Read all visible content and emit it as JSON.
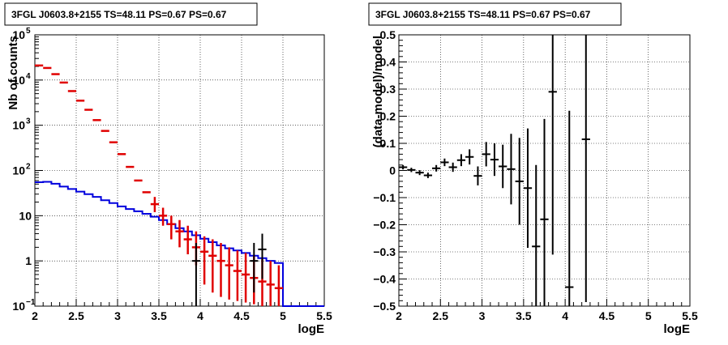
{
  "chart_data": [
    {
      "type": "scatter",
      "title": "3FGL J0603.8+2155 TS=48.11 PS=0.67 PS=0.67",
      "xlabel": "logE",
      "ylabel": "Nb of counts",
      "xlim": [
        2,
        5.5
      ],
      "ylim": [
        0.1,
        100000
      ],
      "yscale": "log",
      "grid": true,
      "x_ticks": [
        "2",
        "2.5",
        "3",
        "3.5",
        "4",
        "4.5",
        "5",
        "5.5"
      ],
      "y_ticks": [
        {
          "value": 0.1,
          "base": "10",
          "exp": "−1"
        },
        {
          "value": 1,
          "base": "1",
          "exp": ""
        },
        {
          "value": 10,
          "base": "10",
          "exp": ""
        },
        {
          "value": 100,
          "base": "10",
          "exp": "2"
        },
        {
          "value": 1000,
          "base": "10",
          "exp": "3"
        },
        {
          "value": 10000,
          "base": "10",
          "exp": "4"
        },
        {
          "value": 100000,
          "base": "10",
          "exp": "5"
        }
      ],
      "bin_edges": [
        2.0,
        2.1,
        2.2,
        2.3,
        2.4,
        2.5,
        2.6,
        2.7,
        2.8,
        2.9,
        3.0,
        3.1,
        3.2,
        3.3,
        3.4,
        3.5,
        3.6,
        3.7,
        3.8,
        3.9,
        4.0,
        4.1,
        4.2,
        4.3,
        4.4,
        4.5,
        4.6,
        4.7,
        4.8,
        4.9,
        5.0,
        5.1,
        5.2,
        5.3,
        5.4,
        5.5
      ],
      "series": [
        {
          "color": "#e00000",
          "kind": "model_markers",
          "x": [
            2.05,
            2.15,
            2.25,
            2.35,
            2.45,
            2.55,
            2.65,
            2.75,
            2.85,
            2.95,
            3.05,
            3.15,
            3.25,
            3.35,
            3.45,
            3.55,
            3.65,
            3.75,
            3.85,
            3.95,
            4.05,
            4.15,
            4.25,
            4.35,
            4.45,
            4.55,
            4.65,
            4.75,
            4.85,
            4.95
          ],
          "y": [
            21000,
            18500,
            13500,
            8800,
            5700,
            3500,
            2200,
            1300,
            750,
            420,
            230,
            120,
            60,
            33,
            18,
            10,
            6.5,
            4.5,
            3,
            2,
            1.6,
            1.3,
            1.0,
            0.8,
            0.6,
            0.5,
            0.42,
            0.35,
            0.3,
            0.25
          ],
          "ylow": [
            null,
            null,
            null,
            null,
            null,
            null,
            null,
            null,
            null,
            null,
            null,
            null,
            null,
            null,
            12,
            6,
            3,
            2,
            1.4,
            0.8,
            0.3,
            0.2,
            0.16,
            0.14,
            0.13,
            0.12,
            0.11,
            0.1,
            0.1,
            0.1
          ],
          "yhigh": [
            null,
            null,
            null,
            null,
            null,
            null,
            null,
            null,
            null,
            null,
            null,
            null,
            null,
            null,
            26,
            15,
            10,
            8,
            6,
            4.5,
            3.5,
            3,
            2.5,
            2,
            1.7,
            1.5,
            1.3,
            1.1,
            1.0,
            0.8
          ]
        },
        {
          "color": "#0000dd",
          "kind": "model_histogram",
          "y": [
            55,
            56,
            51,
            44,
            39,
            34,
            30,
            26,
            22,
            19,
            16,
            14,
            12.5,
            11,
            9.5,
            8,
            6.5,
            5.3,
            4.5,
            3.7,
            3.1,
            2.6,
            2.2,
            1.9,
            1.7,
            1.5,
            1.3,
            1.15,
            1.0,
            0.9,
            0.1,
            0.1,
            0.1,
            0.1,
            0.1
          ]
        },
        {
          "color": "#000000",
          "kind": "data_points",
          "x": [
            3.95,
            4.65,
            4.75
          ],
          "y": [
            1.0,
            1.0,
            1.8
          ],
          "ylow": [
            0.1,
            0.2,
            0.4
          ],
          "yhigh": [
            2.5,
            2.5,
            4.0
          ]
        }
      ]
    },
    {
      "type": "scatter",
      "title": "3FGL J0603.8+2155 TS=48.11 PS=0.67 PS=0.67",
      "xlabel": "logE",
      "ylabel": "(data-model)/model",
      "xlim": [
        2,
        5.5
      ],
      "ylim": [
        -0.5,
        0.5
      ],
      "grid": true,
      "x_ticks": [
        "2",
        "2.5",
        "3",
        "3.5",
        "4",
        "4.5",
        "5",
        "5.5"
      ],
      "y_ticks": [
        "−0.5",
        "−0.4",
        "−0.3",
        "−0.2",
        "−0.1",
        "0",
        "0.1",
        "0.2",
        "0.3",
        "0.4",
        "0.5"
      ],
      "points": {
        "x": [
          2.05,
          2.15,
          2.25,
          2.35,
          2.45,
          2.55,
          2.65,
          2.75,
          2.85,
          2.95,
          3.05,
          3.15,
          3.25,
          3.35,
          3.45,
          3.55,
          3.65,
          3.75,
          3.85,
          4.05,
          4.25
        ],
        "y": [
          0.012,
          0.002,
          -0.008,
          -0.018,
          0.008,
          0.03,
          0.012,
          0.038,
          0.05,
          -0.02,
          0.06,
          0.04,
          0.015,
          0.005,
          -0.04,
          -0.065,
          -0.28,
          -0.18,
          0.29,
          -0.43,
          0.115
        ],
        "yerr": [
          0.008,
          0.008,
          0.009,
          0.01,
          0.012,
          0.014,
          0.017,
          0.022,
          0.028,
          0.035,
          0.045,
          0.06,
          0.08,
          0.13,
          0.16,
          0.22,
          0.3,
          0.37,
          0.6,
          0.65,
          0.6
        ]
      }
    }
  ]
}
